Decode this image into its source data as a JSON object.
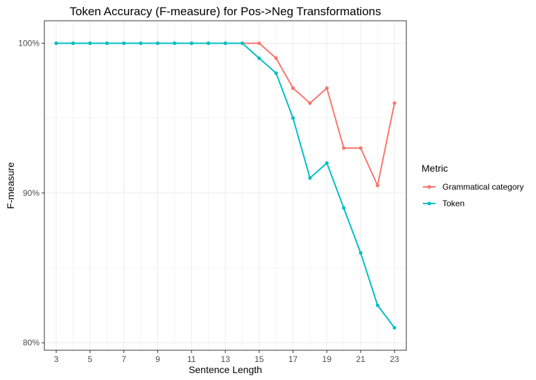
{
  "chart_data": {
    "type": "line",
    "title": "Token Accuracy (F-measure) for Pos->Neg Transformations",
    "xlabel": "Sentence Length",
    "ylabel": "F-measure",
    "xlim": [
      2.3,
      23.7
    ],
    "ylim": [
      0.795,
      1.015
    ],
    "x_ticks": [
      3,
      5,
      7,
      9,
      11,
      13,
      15,
      17,
      19,
      21,
      23
    ],
    "x_tick_labels": [
      "3",
      "5",
      "7",
      "9",
      "11",
      "13",
      "15",
      "17",
      "19",
      "21",
      "23"
    ],
    "y_ticks": [
      0.8,
      0.9,
      1.0
    ],
    "y_tick_labels": [
      "80%",
      "90%",
      "100%"
    ],
    "y_minor_ticks": [
      0.85,
      0.95
    ],
    "grid": true,
    "legend": {
      "title": "Metric",
      "position": "right"
    },
    "x": [
      3,
      4,
      5,
      6,
      7,
      8,
      9,
      10,
      11,
      12,
      13,
      14,
      15,
      16,
      17,
      18,
      19,
      20,
      21,
      22,
      23
    ],
    "series": [
      {
        "name": "Grammatical category",
        "color": "#F8766D",
        "values": [
          1.0,
          1.0,
          1.0,
          1.0,
          1.0,
          1.0,
          1.0,
          1.0,
          1.0,
          1.0,
          1.0,
          1.0,
          1.0,
          0.99,
          0.97,
          0.96,
          0.97,
          0.93,
          0.93,
          0.905,
          0.96
        ]
      },
      {
        "name": "Token",
        "color": "#00BFC4",
        "values": [
          1.0,
          1.0,
          1.0,
          1.0,
          1.0,
          1.0,
          1.0,
          1.0,
          1.0,
          1.0,
          1.0,
          1.0,
          0.99,
          0.98,
          0.95,
          0.91,
          0.92,
          0.89,
          0.86,
          0.825,
          0.81
        ]
      }
    ]
  }
}
